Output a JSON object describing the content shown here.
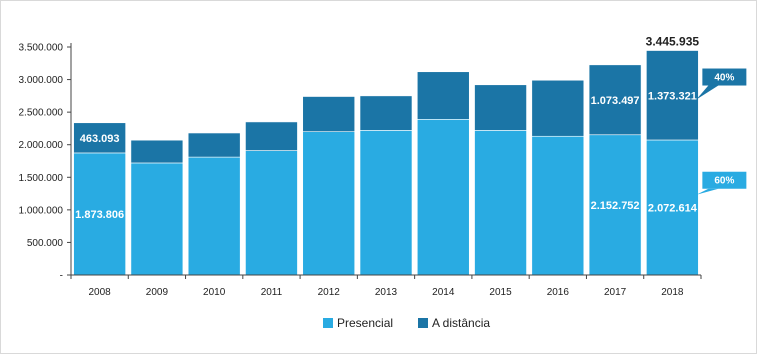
{
  "chart_data": {
    "type": "bar",
    "stacked": true,
    "categories": [
      "2008",
      "2009",
      "2010",
      "2011",
      "2012",
      "2013",
      "2014",
      "2015",
      "2016",
      "2017",
      "2018"
    ],
    "series": [
      {
        "name": "Presencial",
        "color": "#29abe2",
        "values": [
          1873806,
          1720000,
          1810000,
          1910000,
          2200000,
          2220000,
          2390000,
          2220000,
          2130000,
          2152752,
          2072614
        ]
      },
      {
        "name": "A distância",
        "color": "#1b75a6",
        "values": [
          463093,
          350000,
          370000,
          440000,
          540000,
          530000,
          730000,
          700000,
          860000,
          1073497,
          1373321
        ]
      }
    ],
    "ylim": [
      0,
      3500000
    ],
    "yticks": [
      0,
      500000,
      1000000,
      1500000,
      2000000,
      2500000,
      3000000,
      3500000
    ],
    "ytick_labels": [
      "-",
      "500.000",
      "1.000.000",
      "1.500.000",
      "2.000.000",
      "2.500.000",
      "3.000.000",
      "3.500.000"
    ],
    "grid": false,
    "legend": "bottom",
    "data_labels": [
      {
        "category": "2008",
        "series": "A distância",
        "text": "463.093"
      },
      {
        "category": "2008",
        "series": "Presencial",
        "text": "1.873.806"
      },
      {
        "category": "2017",
        "series": "A distância",
        "text": "1.073.497"
      },
      {
        "category": "2017",
        "series": "Presencial",
        "text": "2.152.752"
      },
      {
        "category": "2018",
        "series": "A distância",
        "text": "1.373.321"
      },
      {
        "category": "2018",
        "series": "Presencial",
        "text": "2.072.614"
      }
    ],
    "total_label": {
      "category": "2018",
      "text": "3.445.935"
    },
    "callouts": [
      {
        "category": "2018",
        "series": "A distância",
        "text": "40%"
      },
      {
        "category": "2018",
        "series": "Presencial",
        "text": "60%"
      }
    ]
  }
}
